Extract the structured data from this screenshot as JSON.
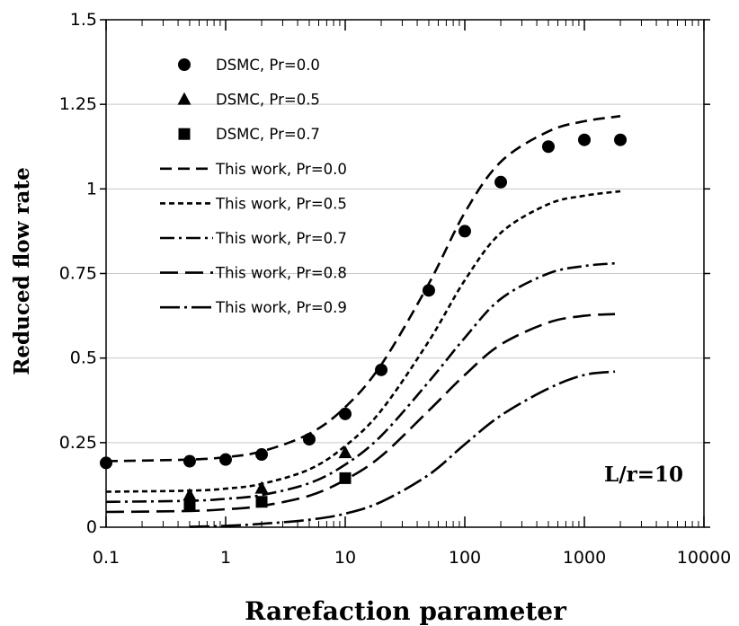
{
  "chart_data": {
    "type": "line",
    "xlabel": "Rarefaction parameter",
    "ylabel": "Reduced flow rate",
    "xscale": "log",
    "xlim": [
      0.1,
      10000
    ],
    "ylim": [
      0,
      1.5
    ],
    "x_ticks": [
      "0.1",
      "1",
      "10",
      "100",
      "1000",
      "10000"
    ],
    "y_ticks": [
      "0",
      "0.25",
      "0.5",
      "0.75",
      "1",
      "1.25",
      "1.5"
    ],
    "grid": "horizontal major",
    "legend_position": "top-left",
    "annotation": "L/r=10",
    "series": [
      {
        "name": "DSMC, Pr=0.0",
        "kind": "scatter",
        "marker": "circle",
        "x": [
          0.1,
          0.5,
          1,
          2,
          5,
          10,
          20,
          50,
          100,
          200,
          500,
          1000,
          2000
        ],
        "y": [
          0.19,
          0.195,
          0.2,
          0.215,
          0.26,
          0.335,
          0.465,
          0.7,
          0.875,
          1.02,
          1.125,
          1.145,
          1.145
        ]
      },
      {
        "name": "DSMC, Pr=0.5",
        "kind": "scatter",
        "marker": "triangle",
        "x": [
          0.5,
          2,
          10
        ],
        "y": [
          0.095,
          0.115,
          0.22
        ]
      },
      {
        "name": "DSMC, Pr=0.7",
        "kind": "scatter",
        "marker": "square",
        "x": [
          0.5,
          2,
          10
        ],
        "y": [
          0.065,
          0.075,
          0.145
        ]
      },
      {
        "name": "This work, Pr=0.0",
        "kind": "line",
        "dash": "13,7",
        "x": [
          0.1,
          0.5,
          1,
          2,
          5,
          10,
          20,
          50,
          100,
          200,
          500,
          1000,
          2000
        ],
        "y": [
          0.195,
          0.2,
          0.207,
          0.224,
          0.276,
          0.355,
          0.48,
          0.72,
          0.93,
          1.08,
          1.17,
          1.2,
          1.215
        ]
      },
      {
        "name": "This work, Pr=0.5",
        "kind": "line",
        "dash": "6,4",
        "x": [
          0.1,
          0.5,
          1,
          2,
          5,
          10,
          20,
          50,
          100,
          200,
          500,
          1000,
          2000
        ],
        "y": [
          0.105,
          0.108,
          0.114,
          0.128,
          0.171,
          0.24,
          0.345,
          0.55,
          0.73,
          0.87,
          0.955,
          0.98,
          0.993
        ]
      },
      {
        "name": "This work, Pr=0.7",
        "kind": "line",
        "dash": "16,5,3,5",
        "x": [
          0.1,
          0.5,
          1,
          2,
          5,
          10,
          20,
          50,
          100,
          200,
          500,
          1000,
          1800
        ],
        "y": [
          0.075,
          0.078,
          0.084,
          0.095,
          0.13,
          0.185,
          0.27,
          0.43,
          0.56,
          0.675,
          0.75,
          0.772,
          0.78
        ]
      },
      {
        "name": "This work, Pr=0.8",
        "kind": "line",
        "dash": "20,8",
        "x": [
          0.1,
          0.5,
          1,
          2,
          5,
          10,
          20,
          50,
          100,
          200,
          500,
          1000,
          1800
        ],
        "y": [
          0.045,
          0.048,
          0.053,
          0.063,
          0.093,
          0.14,
          0.21,
          0.345,
          0.45,
          0.54,
          0.605,
          0.625,
          0.63
        ]
      },
      {
        "name": "This work, Pr=0.9",
        "kind": "line",
        "dash": "22,5,3,5",
        "x": [
          0.5,
          1,
          2,
          5,
          10,
          20,
          50,
          100,
          200,
          500,
          1000,
          1800
        ],
        "y": [
          0.001,
          0.004,
          0.01,
          0.022,
          0.04,
          0.075,
          0.155,
          0.245,
          0.33,
          0.41,
          0.45,
          0.46
        ]
      }
    ]
  }
}
